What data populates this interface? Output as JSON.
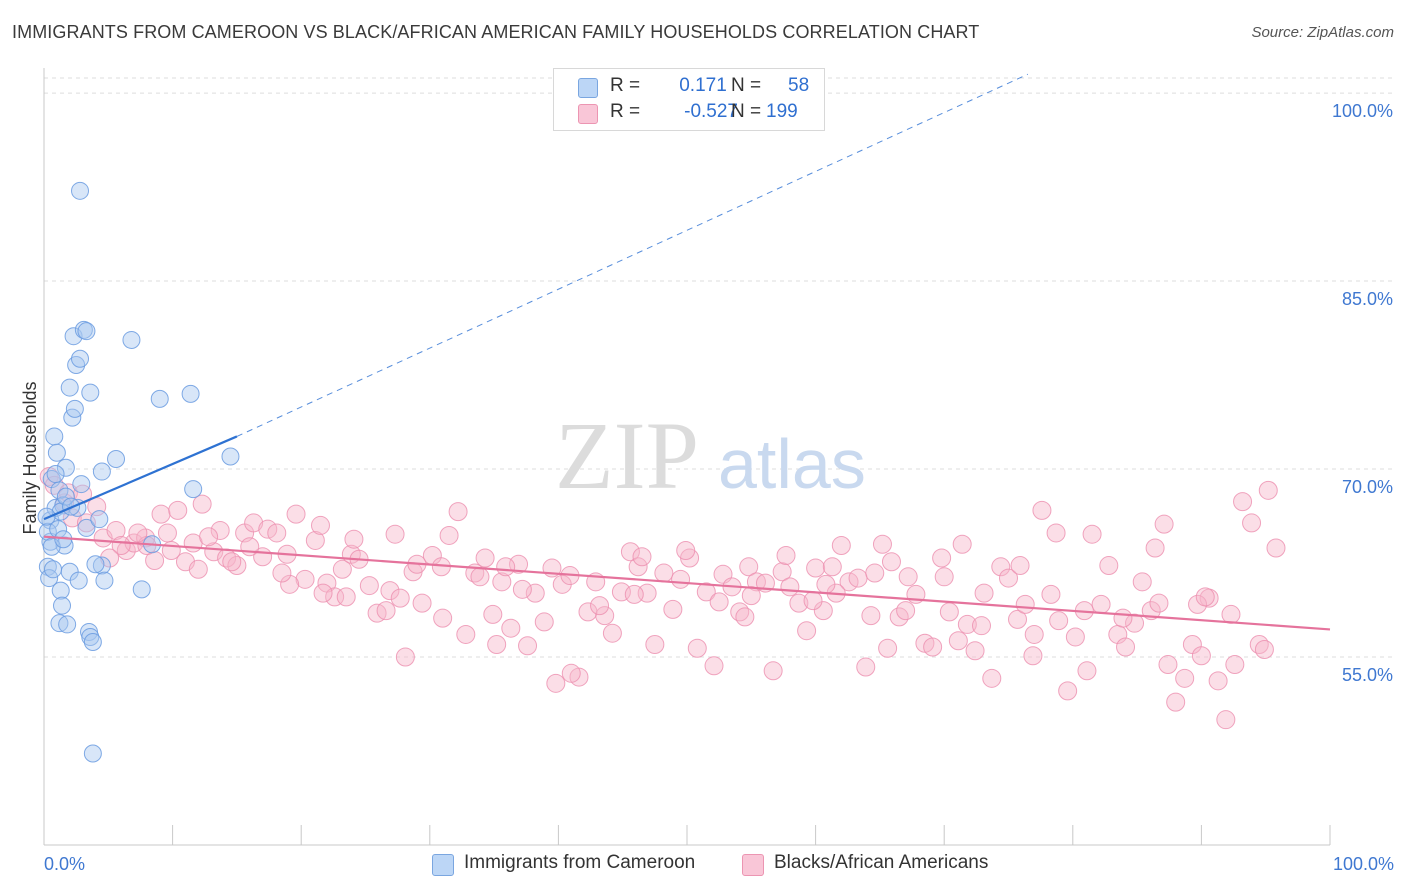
{
  "title": "IMMIGRANTS FROM CAMEROON VS BLACK/AFRICAN AMERICAN FAMILY HOUSEHOLDS CORRELATION CHART",
  "source": "Source: ZipAtlas.com",
  "watermark": {
    "zip": "ZIP",
    "atlas": "atlas"
  },
  "legend": {
    "r_label": "R =",
    "n_label": "N =",
    "rows": [
      {
        "name": "Immigrants from Cameroon",
        "r": "0.171",
        "n": "58",
        "color": "#a9c8f0"
      },
      {
        "name": "Blacks/African Americans",
        "r": "-0.527",
        "n": "199",
        "color": "#f6b5ca"
      }
    ]
  },
  "chart_data": {
    "type": "scatter",
    "title": "IMMIGRANTS FROM CAMEROON VS BLACK/AFRICAN AMERICAN FAMILY HOUSEHOLDS CORRELATION CHART",
    "xlabel": "",
    "ylabel": "Family Households",
    "xlim": [
      0,
      100
    ],
    "ylim": [
      40,
      102
    ],
    "x_tick_labels": [
      "0.0%",
      "100.0%"
    ],
    "y_ticks": [
      55,
      70,
      85,
      100
    ],
    "y_tick_labels": [
      "55.0%",
      "70.0%",
      "85.0%",
      "100.0%"
    ],
    "grid": true,
    "legend_position": "top-center",
    "series": [
      {
        "name": "Immigrants from Cameroon",
        "color": "#a9c8f0",
        "stroke": "#6a9be0",
        "trend_color": "#2e72d2",
        "trend": {
          "x": [
            0,
            15
          ],
          "y": [
            66.0,
            72.6
          ],
          "extend_to_x": 76.5,
          "extend_to_y": 101.5
        },
        "points": [
          [
            0.3,
            62.2
          ],
          [
            0.4,
            61.3
          ],
          [
            0.5,
            65.9
          ],
          [
            0.5,
            64.2
          ],
          [
            0.6,
            69.2
          ],
          [
            0.8,
            72.6
          ],
          [
            0.9,
            66.9
          ],
          [
            1.0,
            71.3
          ],
          [
            1.2,
            68.3
          ],
          [
            1.2,
            57.7
          ],
          [
            1.3,
            60.3
          ],
          [
            1.4,
            59.1
          ],
          [
            1.5,
            67.1
          ],
          [
            1.6,
            63.9
          ],
          [
            1.7,
            70.1
          ],
          [
            1.8,
            57.6
          ],
          [
            2.0,
            76.5
          ],
          [
            2.0,
            61.8
          ],
          [
            2.2,
            74.1
          ],
          [
            2.3,
            80.6
          ],
          [
            2.4,
            74.8
          ],
          [
            2.5,
            78.3
          ],
          [
            2.6,
            66.9
          ],
          [
            2.7,
            61.1
          ],
          [
            2.8,
            78.8
          ],
          [
            2.8,
            92.2
          ],
          [
            2.9,
            68.8
          ],
          [
            3.1,
            81.1
          ],
          [
            3.3,
            81.0
          ],
          [
            3.3,
            65.3
          ],
          [
            3.5,
            57.0
          ],
          [
            3.6,
            76.1
          ],
          [
            3.6,
            56.6
          ],
          [
            3.8,
            56.2
          ],
          [
            3.8,
            47.3
          ],
          [
            4.3,
            66.0
          ],
          [
            4.5,
            69.8
          ],
          [
            4.5,
            62.3
          ],
          [
            4.7,
            61.1
          ],
          [
            5.6,
            70.8
          ],
          [
            6.8,
            80.3
          ],
          [
            7.6,
            60.4
          ],
          [
            8.4,
            64.0
          ],
          [
            9.0,
            75.6
          ],
          [
            11.4,
            76.0
          ],
          [
            11.6,
            68.4
          ],
          [
            14.5,
            71.0
          ],
          [
            0.3,
            65.0
          ],
          [
            0.6,
            63.8
          ],
          [
            0.7,
            62.0
          ],
          [
            1.1,
            65.2
          ],
          [
            1.3,
            66.6
          ],
          [
            1.7,
            67.8
          ],
          [
            2.1,
            67.0
          ],
          [
            0.2,
            66.2
          ],
          [
            0.9,
            69.6
          ],
          [
            4.0,
            62.4
          ],
          [
            1.5,
            64.4
          ]
        ]
      },
      {
        "name": "Blacks/African Americans",
        "color": "#f6b5ca",
        "stroke": "#ec8faf",
        "trend_color": "#e5739c",
        "trend": {
          "x": [
            0,
            100
          ],
          "y": [
            64.6,
            57.2
          ]
        },
        "points": [
          [
            0.4,
            69.4
          ],
          [
            0.8,
            68.7
          ],
          [
            1.6,
            67.3
          ],
          [
            2.2,
            66.1
          ],
          [
            3.3,
            65.7
          ],
          [
            4.1,
            67.0
          ],
          [
            4.6,
            64.5
          ],
          [
            5.6,
            65.1
          ],
          [
            6.4,
            63.5
          ],
          [
            7.0,
            64.1
          ],
          [
            7.9,
            64.5
          ],
          [
            8.6,
            62.7
          ],
          [
            9.1,
            66.4
          ],
          [
            9.6,
            64.9
          ],
          [
            10.4,
            66.7
          ],
          [
            11.0,
            62.6
          ],
          [
            11.6,
            64.1
          ],
          [
            12.3,
            67.2
          ],
          [
            13.2,
            63.4
          ],
          [
            13.7,
            65.1
          ],
          [
            14.2,
            62.9
          ],
          [
            15.0,
            62.3
          ],
          [
            15.6,
            64.9
          ],
          [
            16.3,
            65.7
          ],
          [
            17.0,
            63.0
          ],
          [
            17.4,
            65.2
          ],
          [
            18.1,
            64.9
          ],
          [
            18.9,
            63.2
          ],
          [
            19.6,
            66.4
          ],
          [
            20.3,
            61.2
          ],
          [
            21.1,
            64.3
          ],
          [
            21.5,
            65.5
          ],
          [
            22.0,
            60.9
          ],
          [
            22.6,
            59.8
          ],
          [
            23.2,
            62.0
          ],
          [
            23.9,
            63.2
          ],
          [
            24.5,
            62.8
          ],
          [
            25.3,
            60.7
          ],
          [
            25.9,
            58.5
          ],
          [
            26.6,
            58.7
          ],
          [
            27.3,
            64.8
          ],
          [
            28.1,
            55.0
          ],
          [
            28.7,
            61.8
          ],
          [
            29.4,
            59.3
          ],
          [
            30.2,
            63.1
          ],
          [
            30.9,
            62.2
          ],
          [
            31.5,
            64.7
          ],
          [
            32.2,
            66.6
          ],
          [
            32.8,
            56.8
          ],
          [
            33.5,
            61.7
          ],
          [
            34.3,
            62.9
          ],
          [
            34.9,
            58.4
          ],
          [
            35.6,
            61.0
          ],
          [
            36.3,
            57.3
          ],
          [
            36.9,
            62.4
          ],
          [
            37.6,
            55.9
          ],
          [
            38.2,
            60.1
          ],
          [
            38.9,
            57.8
          ],
          [
            39.5,
            62.1
          ],
          [
            40.3,
            60.8
          ],
          [
            40.9,
            61.5
          ],
          [
            41.6,
            53.4
          ],
          [
            42.3,
            58.6
          ],
          [
            42.9,
            61.0
          ],
          [
            43.6,
            58.3
          ],
          [
            44.2,
            56.9
          ],
          [
            44.9,
            60.2
          ],
          [
            45.6,
            63.4
          ],
          [
            46.2,
            62.2
          ],
          [
            46.9,
            60.1
          ],
          [
            47.5,
            56.0
          ],
          [
            48.2,
            61.7
          ],
          [
            48.9,
            58.8
          ],
          [
            49.5,
            61.2
          ],
          [
            50.2,
            62.9
          ],
          [
            50.8,
            55.7
          ],
          [
            51.5,
            60.2
          ],
          [
            52.1,
            54.3
          ],
          [
            52.8,
            61.6
          ],
          [
            53.5,
            60.6
          ],
          [
            54.1,
            58.6
          ],
          [
            54.8,
            62.2
          ],
          [
            55.4,
            61.0
          ],
          [
            56.1,
            60.9
          ],
          [
            56.7,
            53.9
          ],
          [
            57.4,
            61.8
          ],
          [
            58.0,
            60.6
          ],
          [
            58.7,
            59.3
          ],
          [
            59.3,
            57.1
          ],
          [
            60.0,
            62.1
          ],
          [
            60.6,
            58.7
          ],
          [
            61.3,
            62.2
          ],
          [
            62.0,
            63.9
          ],
          [
            62.6,
            61.0
          ],
          [
            63.3,
            61.3
          ],
          [
            63.9,
            54.2
          ],
          [
            64.6,
            61.7
          ],
          [
            65.2,
            64.0
          ],
          [
            65.9,
            62.6
          ],
          [
            66.5,
            58.2
          ],
          [
            67.2,
            61.4
          ],
          [
            67.8,
            60.0
          ],
          [
            68.5,
            56.1
          ],
          [
            69.1,
            55.8
          ],
          [
            69.8,
            62.9
          ],
          [
            70.4,
            58.6
          ],
          [
            71.1,
            56.3
          ],
          [
            71.8,
            57.6
          ],
          [
            72.4,
            55.5
          ],
          [
            73.1,
            60.1
          ],
          [
            73.7,
            53.3
          ],
          [
            74.4,
            62.2
          ],
          [
            75.0,
            61.3
          ],
          [
            75.7,
            58.0
          ],
          [
            76.3,
            59.2
          ],
          [
            77.0,
            56.8
          ],
          [
            77.6,
            66.7
          ],
          [
            78.3,
            60.0
          ],
          [
            78.9,
            57.9
          ],
          [
            79.6,
            52.3
          ],
          [
            80.2,
            56.6
          ],
          [
            80.9,
            58.7
          ],
          [
            81.5,
            64.8
          ],
          [
            82.2,
            59.2
          ],
          [
            82.8,
            62.3
          ],
          [
            83.5,
            56.8
          ],
          [
            84.1,
            55.8
          ],
          [
            84.8,
            57.7
          ],
          [
            85.4,
            61.0
          ],
          [
            86.1,
            58.7
          ],
          [
            86.7,
            59.3
          ],
          [
            87.4,
            54.4
          ],
          [
            88.0,
            51.4
          ],
          [
            88.7,
            53.3
          ],
          [
            89.3,
            56.0
          ],
          [
            90.0,
            55.1
          ],
          [
            90.6,
            59.7
          ],
          [
            91.3,
            53.1
          ],
          [
            91.9,
            50.0
          ],
          [
            92.6,
            54.4
          ],
          [
            93.2,
            67.4
          ],
          [
            93.9,
            65.7
          ],
          [
            94.5,
            56.0
          ],
          [
            95.2,
            68.3
          ],
          [
            95.8,
            63.7
          ],
          [
            1.9,
            68.1
          ],
          [
            3.0,
            68.0
          ],
          [
            6.0,
            63.9
          ],
          [
            9.9,
            63.5
          ],
          [
            12.8,
            64.6
          ],
          [
            16.0,
            63.8
          ],
          [
            19.1,
            60.8
          ],
          [
            21.7,
            60.1
          ],
          [
            24.1,
            64.4
          ],
          [
            26.9,
            60.3
          ],
          [
            29.0,
            62.4
          ],
          [
            31.0,
            58.1
          ],
          [
            33.9,
            61.4
          ],
          [
            37.2,
            60.4
          ],
          [
            39.8,
            52.9
          ],
          [
            43.2,
            59.1
          ],
          [
            45.9,
            60.0
          ],
          [
            49.9,
            63.5
          ],
          [
            52.5,
            59.4
          ],
          [
            55.0,
            59.9
          ],
          [
            57.7,
            63.1
          ],
          [
            61.6,
            60.1
          ],
          [
            64.3,
            58.3
          ],
          [
            67.0,
            58.7
          ],
          [
            70.0,
            61.4
          ],
          [
            72.9,
            57.5
          ],
          [
            75.9,
            62.3
          ],
          [
            78.7,
            64.9
          ],
          [
            81.1,
            53.9
          ],
          [
            83.9,
            58.1
          ],
          [
            86.4,
            63.7
          ],
          [
            89.7,
            59.2
          ],
          [
            92.3,
            58.4
          ],
          [
            94.9,
            55.6
          ],
          [
            5.1,
            62.9
          ],
          [
            8.0,
            63.9
          ],
          [
            14.6,
            62.6
          ],
          [
            18.5,
            61.7
          ],
          [
            27.7,
            59.7
          ],
          [
            35.2,
            56.0
          ],
          [
            41.0,
            53.7
          ],
          [
            46.5,
            63.0
          ],
          [
            54.5,
            58.2
          ],
          [
            59.8,
            59.5
          ],
          [
            65.6,
            55.7
          ],
          [
            71.4,
            64.0
          ],
          [
            76.9,
            55.1
          ],
          [
            87.1,
            65.6
          ],
          [
            90.3,
            59.8
          ],
          [
            60.8,
            60.8
          ],
          [
            35.9,
            62.2
          ],
          [
            23.5,
            59.8
          ],
          [
            12.0,
            62.0
          ],
          [
            7.3,
            64.9
          ]
        ]
      }
    ]
  }
}
